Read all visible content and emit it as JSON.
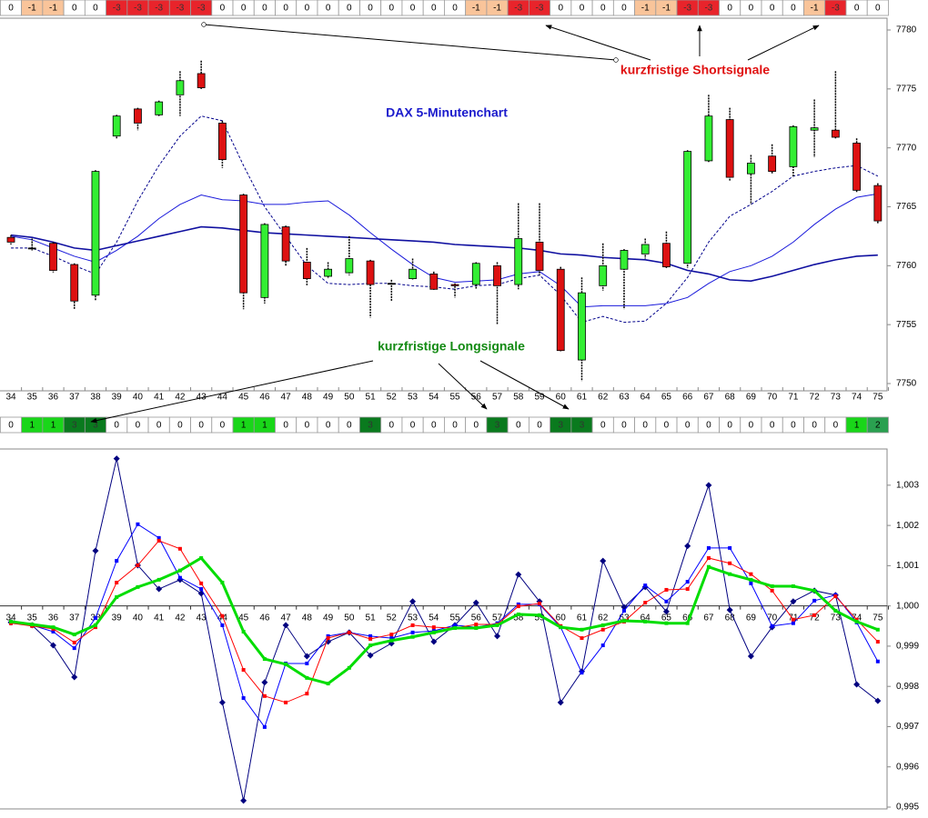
{
  "chart_data": [
    {
      "type": "candlestick",
      "categories": [
        "34",
        "35",
        "36",
        "37",
        "38",
        "39",
        "40",
        "41",
        "42",
        "43",
        "44",
        "45",
        "46",
        "47",
        "48",
        "49",
        "50",
        "51",
        "52",
        "53",
        "54",
        "55",
        "56",
        "57",
        "58",
        "59",
        "60",
        "61",
        "62",
        "63",
        "64",
        "65",
        "66",
        "67",
        "68",
        "69",
        "70",
        "71",
        "72",
        "73",
        "74",
        "75"
      ],
      "open": [
        7762.4,
        7761.5,
        7761.9,
        7760.1,
        7757.5,
        7771.0,
        7773.3,
        7772.8,
        7774.5,
        7776.3,
        7772.1,
        7766.0,
        7757.3,
        7763.3,
        7760.3,
        7759.1,
        7759.4,
        7760.4,
        7758.5,
        7758.9,
        7759.3,
        7758.4,
        7758.4,
        7760.0,
        7758.4,
        7762.0,
        7759.7,
        7752.0,
        7758.3,
        7759.7,
        7761.0,
        7761.9,
        7760.2,
        7768.9,
        7772.4,
        7767.8,
        7769.3,
        7768.4,
        7771.5,
        7771.5,
        7770.4,
        7766.8
      ],
      "high": [
        7762.6,
        7762.3,
        7762.0,
        7760.2,
        7768.1,
        7772.8,
        7773.4,
        7774.0,
        7776.5,
        7777.4,
        7772.3,
        7766.1,
        7763.6,
        7763.4,
        7761.5,
        7760.3,
        7762.5,
        7760.5,
        7758.8,
        7760.6,
        7759.5,
        7758.5,
        7760.3,
        7760.3,
        7765.3,
        7765.3,
        7759.9,
        7759.0,
        7761.9,
        7761.4,
        7762.3,
        7762.9,
        7769.8,
        7774.5,
        7773.4,
        7769.4,
        7770.3,
        7771.9,
        7774.1,
        7776.5,
        7770.8,
        7767.0
      ],
      "low": [
        7761.8,
        7761.3,
        7759.4,
        7756.3,
        7757.0,
        7770.8,
        7771.5,
        7772.7,
        7772.7,
        7775.0,
        7768.3,
        7756.3,
        7756.8,
        7760.0,
        7758.3,
        7758.9,
        7759.2,
        7755.6,
        7757.0,
        7758.8,
        7757.9,
        7757.3,
        7758.0,
        7755.0,
        7758.0,
        7759.2,
        7752.7,
        7750.2,
        7757.9,
        7756.3,
        7760.6,
        7759.8,
        7759.8,
        7768.8,
        7767.2,
        7765.2,
        7767.8,
        7767.5,
        7769.2,
        7770.8,
        7766.2,
        7763.6
      ],
      "close": [
        7762.0,
        7761.5,
        7759.6,
        7757.0,
        7768.0,
        7772.7,
        7772.1,
        7773.9,
        7775.7,
        7775.1,
        7769.0,
        7757.7,
        7763.5,
        7760.4,
        7758.9,
        7759.7,
        7760.6,
        7758.4,
        7758.5,
        7759.7,
        7758.0,
        7758.3,
        7760.2,
        7758.3,
        7762.3,
        7759.6,
        7752.8,
        7757.7,
        7760.0,
        7761.3,
        7761.8,
        7759.9,
        7769.7,
        7772.7,
        7767.5,
        7768.7,
        7768.0,
        7771.8,
        7771.7,
        7770.9,
        7766.4,
        7763.8
      ],
      "up_color": "#33ee33",
      "down_color": "#dd1111",
      "series": [
        {
          "color": "#00008b",
          "dashed": true,
          "values": [
            7761.5,
            7761.5,
            7760.8,
            7760.0,
            7759.3,
            7762.0,
            7765.5,
            7768.5,
            7771.0,
            7772.7,
            7772.3,
            7768.5,
            7765.0,
            7762.5,
            7760.0,
            7758.5,
            7758.4,
            7758.5,
            7758.5,
            7758.3,
            7758.2,
            7758.0,
            7758.3,
            7758.4,
            7758.9,
            7759.2,
            7757.5,
            7755.2,
            7755.7,
            7755.2,
            7755.3,
            7756.8,
            7759.0,
            7762.0,
            7764.2,
            7765.2,
            7766.3,
            7767.6,
            7768.0,
            7768.3,
            7768.5,
            7767.6
          ]
        },
        {
          "color": "#1a1adb",
          "values": [
            7762.5,
            7762.2,
            7761.5,
            7760.8,
            7760.3,
            7761.3,
            7762.5,
            7764.0,
            7765.2,
            7766.0,
            7765.6,
            7765.5,
            7765.2,
            7765.2,
            7765.4,
            7765.5,
            7764.3,
            7762.8,
            7761.4,
            7760.1,
            7759.0,
            7758.6,
            7758.7,
            7758.8,
            7759.3,
            7759.5,
            7758.3,
            7756.5,
            7756.6,
            7756.6,
            7756.6,
            7756.8,
            7757.3,
            7758.5,
            7759.5,
            7760.0,
            7760.8,
            7762.0,
            7763.5,
            7764.8,
            7765.8,
            7766.1
          ]
        },
        {
          "color": "#1010a0",
          "bold": true,
          "values": [
            7762.6,
            7762.4,
            7762.0,
            7761.5,
            7761.3,
            7761.7,
            7762.1,
            7762.5,
            7762.9,
            7763.3,
            7763.2,
            7763.0,
            7762.8,
            7762.7,
            7762.6,
            7762.5,
            7762.4,
            7762.3,
            7762.2,
            7762.1,
            7762.0,
            7761.8,
            7761.7,
            7761.6,
            7761.5,
            7761.3,
            7761.0,
            7760.9,
            7760.7,
            7760.6,
            7760.5,
            7760.2,
            7759.6,
            7759.3,
            7758.8,
            7758.7,
            7759.1,
            7759.6,
            7760.1,
            7760.5,
            7760.8,
            7760.9
          ]
        }
      ],
      "ylim": [
        7750,
        7780
      ],
      "yticks": [
        7750,
        7755,
        7760,
        7765,
        7770,
        7775,
        7780
      ],
      "annotations": [
        {
          "text": "DAX 5-Minutenchart",
          "color": "#1a1acc"
        },
        {
          "text": "kurzfristige Shortsignale",
          "color": "#e01010"
        },
        {
          "text": "kurzfristige Longsignale",
          "color": "#128a12"
        }
      ],
      "short_signals": [
        0,
        -1,
        -1,
        0,
        0,
        -3,
        -3,
        -3,
        -3,
        -3,
        0,
        0,
        0,
        0,
        0,
        0,
        0,
        0,
        0,
        0,
        0,
        0,
        -1,
        -1,
        -3,
        -3,
        0,
        0,
        0,
        0,
        -1,
        -1,
        -3,
        -3,
        0,
        0,
        0,
        0,
        -1,
        -3,
        0,
        0
      ],
      "long_signals": [
        0,
        1,
        1,
        3,
        3,
        0,
        0,
        0,
        0,
        0,
        0,
        1,
        1,
        0,
        0,
        0,
        0,
        3,
        0,
        0,
        0,
        0,
        0,
        3,
        0,
        0,
        3,
        3,
        0,
        0,
        0,
        0,
        0,
        0,
        0,
        0,
        0,
        0,
        0,
        0,
        1,
        2
      ],
      "signal_colors": {
        "-1": "#f9c49a",
        "-3": "#e8242b",
        "0": "#ffffff",
        "1": "#19d619",
        "2": "#2aa050",
        "3": "#0a7a1e"
      }
    },
    {
      "type": "line",
      "categories": [
        "34",
        "35",
        "36",
        "37",
        "38",
        "39",
        "40",
        "41",
        "42",
        "43",
        "44",
        "45",
        "46",
        "47",
        "48",
        "49",
        "50",
        "51",
        "52",
        "53",
        "54",
        "55",
        "56",
        "57",
        "58",
        "59",
        "60",
        "61",
        "62",
        "63",
        "64",
        "65",
        "66",
        "67",
        "68",
        "69",
        "70",
        "71",
        "72",
        "73",
        "74",
        "75"
      ],
      "series": [
        {
          "color": "#000080",
          "marker": "diamond",
          "values": [
            0.99959,
            0.99952,
            0.99902,
            0.99823,
            1.00137,
            1.00366,
            1.00101,
            1.00042,
            1.00065,
            1.00031,
            0.9976,
            0.99516,
            0.9981,
            0.99952,
            0.99875,
            0.99911,
            0.99934,
            0.99877,
            0.99907,
            1.00011,
            0.99911,
            0.99952,
            1.00008,
            0.99925,
            1.00078,
            1.00011,
            0.9976,
            0.99837,
            1.00112,
            0.99997,
            1.00047,
            0.99986,
            1.00149,
            1.003,
            0.9999,
            0.99875,
            0.99947,
            1.00011,
            1.00038,
            1.00027,
            0.99805,
            0.99764
          ]
        },
        {
          "color": "#0000ff",
          "marker": "square",
          "values": [
            0.99957,
            0.99952,
            0.99936,
            0.99895,
            0.9997,
            1.00112,
            1.00203,
            1.00169,
            1.0007,
            1.00042,
            0.99952,
            0.99771,
            0.99699,
            0.99857,
            0.99857,
            0.99925,
            0.99934,
            0.99925,
            0.9992,
            0.99934,
            0.99938,
            0.99952,
            0.99947,
            0.99957,
            1.00004,
            1.00004,
            0.99947,
            0.99834,
            0.99902,
            0.99988,
            1.00051,
            1.00011,
            1.0006,
            1.00144,
            1.00144,
            1.00056,
            0.9995,
            0.99957,
            1.00013,
            1.00027,
            0.99959,
            0.99862
          ]
        },
        {
          "color": "#ff0000",
          "marker": "square",
          "values": [
            0.99957,
            0.9995,
            0.99943,
            0.99909,
            0.99947,
            1.00058,
            1.00101,
            1.00162,
            1.00142,
            1.00056,
            0.99975,
            0.99841,
            0.99776,
            0.9976,
            0.99782,
            0.9992,
            0.99934,
            0.99918,
            0.99929,
            0.99952,
            0.99947,
            0.99945,
            0.99954,
            0.99954,
            0.99999,
            1.00006,
            0.9995,
            0.9992,
            0.99941,
            0.99961,
            1.00008,
            1.0004,
            1.00042,
            1.00119,
            1.00106,
            1.00079,
            1.00038,
            0.99966,
            0.99977,
            1.00024,
            0.99966,
            0.99911
          ]
        },
        {
          "color": "#00dd00",
          "marker": "square",
          "bold": true,
          "values": [
            0.99961,
            0.99954,
            0.99947,
            0.99929,
            0.99952,
            1.00022,
            1.00047,
            1.00065,
            1.00088,
            1.00119,
            1.00058,
            0.99936,
            0.99868,
            0.99855,
            0.99821,
            0.99807,
            0.99846,
            0.99902,
            0.99914,
            0.99923,
            0.99934,
            0.99945,
            0.99945,
            0.99952,
            0.99979,
            0.99977,
            0.99947,
            0.99941,
            0.99952,
            0.99963,
            0.99961,
            0.99957,
            0.99957,
            1.00097,
            1.00079,
            1.00065,
            1.00049,
            1.00049,
            1.00038,
            0.99988,
            0.99961,
            0.99941
          ]
        }
      ],
      "ylim": [
        0.995,
        1.0039
      ],
      "yticks": [
        {
          "value": 0.995,
          "label": "0,995"
        },
        {
          "value": 0.996,
          "label": "0,996"
        },
        {
          "value": 0.997,
          "label": "0,997"
        },
        {
          "value": 0.998,
          "label": "0,998"
        },
        {
          "value": 0.999,
          "label": "0,999"
        },
        {
          "value": 1.0,
          "label": "1,000"
        },
        {
          "value": 1.001,
          "label": "1,001"
        },
        {
          "value": 1.002,
          "label": "1,002"
        },
        {
          "value": 1.003,
          "label": "1,003"
        }
      ]
    }
  ]
}
